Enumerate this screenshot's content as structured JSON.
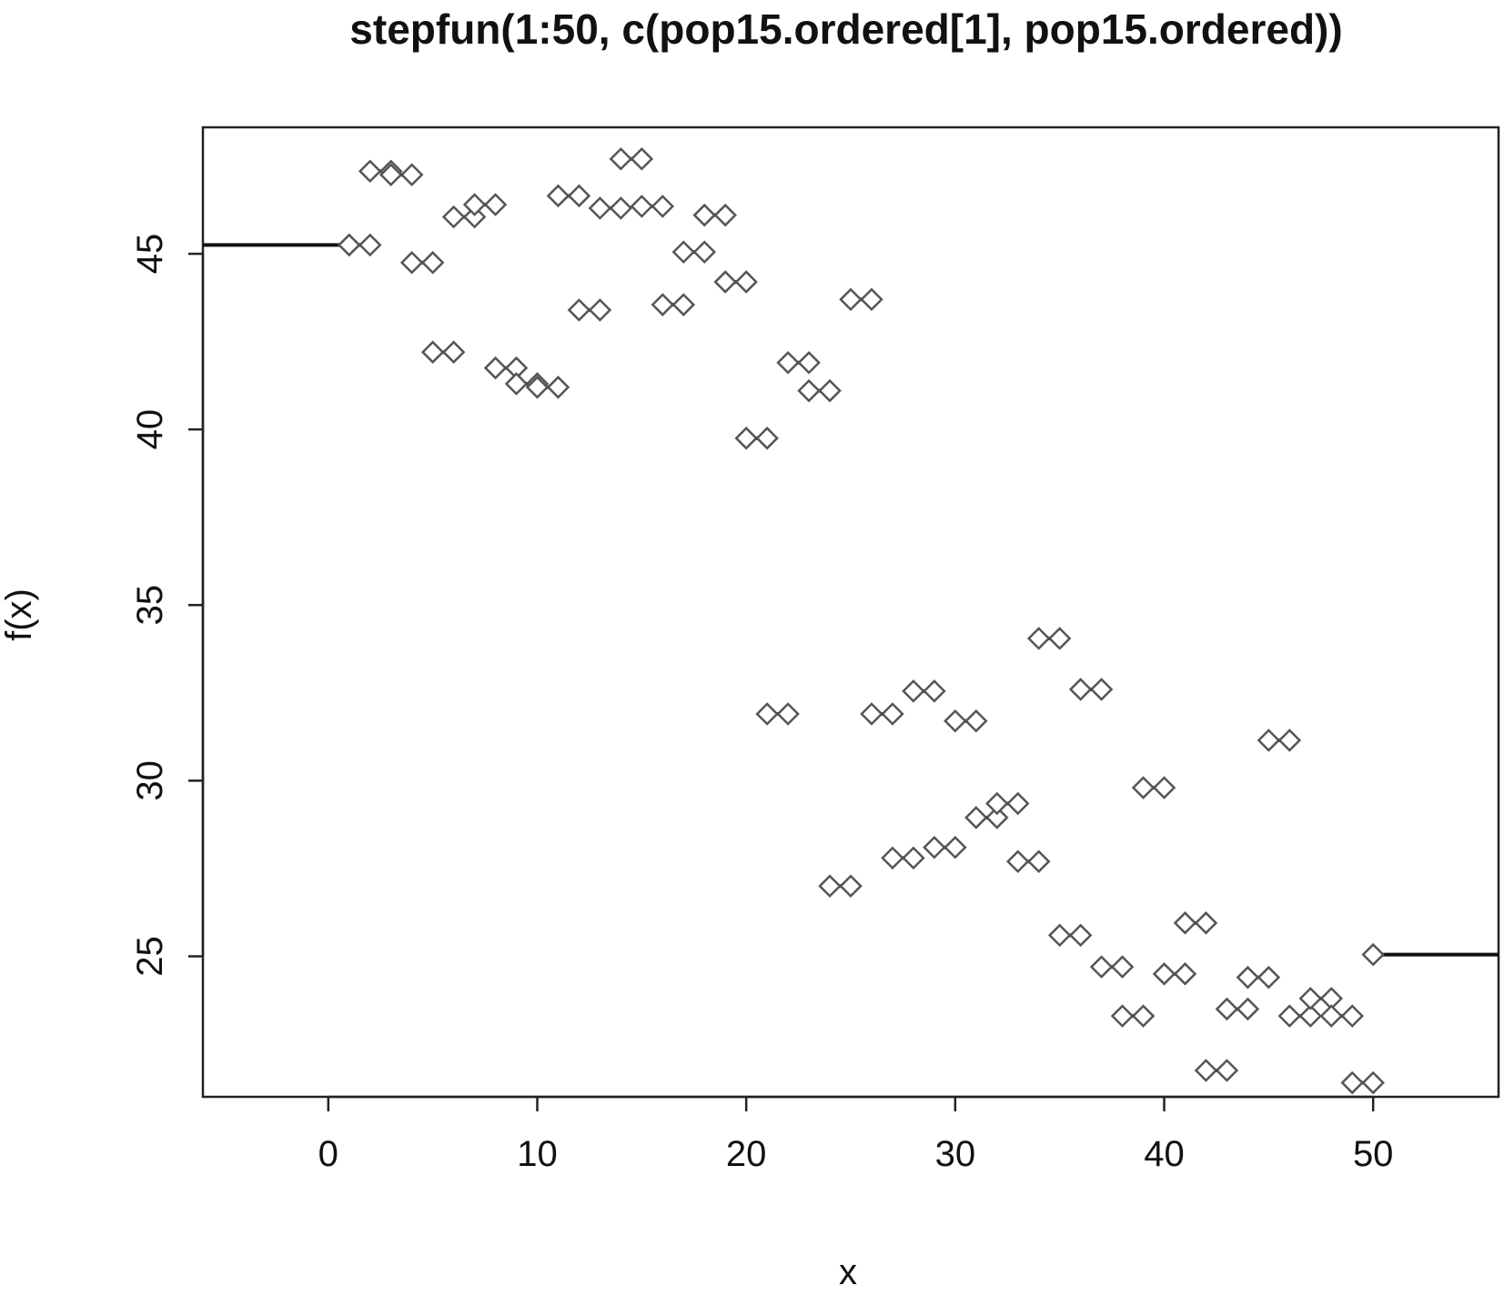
{
  "chart_data": {
    "type": "line",
    "title": "stepfun(1:50, c(pop15.ordered[1], pop15.ordered))",
    "xlabel": "x",
    "ylabel": "f(x)",
    "xlim": [
      -6,
      56
    ],
    "ylim": [
      21,
      48.6
    ],
    "x_ticks": [
      0,
      10,
      20,
      30,
      40,
      50
    ],
    "y_ticks": [
      25,
      30,
      35,
      40,
      45
    ],
    "grid": false,
    "series": [
      {
        "knots": [
          1,
          2,
          3,
          4,
          5,
          6,
          7,
          8,
          9,
          10,
          11,
          12,
          13,
          14,
          15,
          16,
          17,
          18,
          19,
          20,
          21,
          22,
          23,
          24,
          25,
          26,
          27,
          28,
          29,
          30,
          31,
          32,
          33,
          34,
          35,
          36,
          37,
          38,
          39,
          40,
          41,
          42,
          43,
          44,
          45,
          46,
          47,
          48,
          49,
          50
        ],
        "values": [
          45.25,
          45.25,
          47.35,
          47.25,
          44.75,
          42.2,
          46.05,
          46.4,
          41.75,
          41.3,
          41.2,
          46.65,
          43.4,
          46.3,
          47.7,
          46.35,
          43.55,
          45.05,
          46.1,
          44.2,
          39.75,
          31.9,
          41.9,
          41.1,
          27.0,
          43.7,
          31.9,
          27.8,
          32.55,
          28.1,
          31.7,
          28.95,
          29.35,
          27.7,
          34.05,
          25.6,
          32.6,
          24.7,
          23.3,
          29.8,
          24.5,
          25.95,
          21.75,
          23.5,
          24.4,
          31.15,
          23.3,
          23.8,
          23.3,
          21.4,
          25.05
        ]
      }
    ]
  }
}
